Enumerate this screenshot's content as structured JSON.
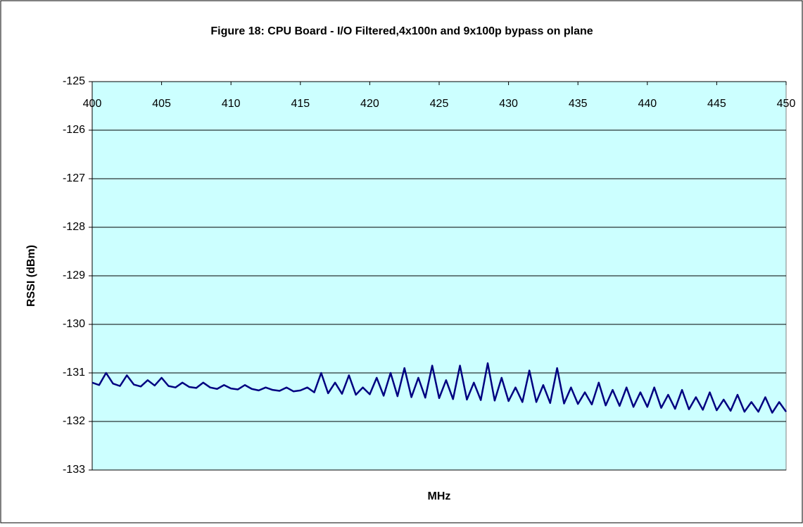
{
  "chart_data": {
    "type": "line",
    "title": "Figure 18: CPU Board - I/O Filtered,4x100n and 9x100p bypass on plane",
    "x_label": "MHz",
    "y_label": "RSSI (dBm)",
    "x": [
      400,
      400.5,
      401,
      401.5,
      402,
      402.5,
      403,
      403.5,
      404,
      404.5,
      405,
      405.5,
      406,
      406.5,
      407,
      407.5,
      408,
      408.5,
      409,
      409.5,
      410,
      410.5,
      411,
      411.5,
      412,
      412.5,
      413,
      413.5,
      414,
      414.5,
      415,
      415.5,
      416,
      416.5,
      417,
      417.5,
      418,
      418.5,
      419,
      419.5,
      420,
      420.5,
      421,
      421.5,
      422,
      422.5,
      423,
      423.5,
      424,
      424.5,
      425,
      425.5,
      426,
      426.5,
      427,
      427.5,
      428,
      428.5,
      429,
      429.5,
      430,
      430.5,
      431,
      431.5,
      432,
      432.5,
      433,
      433.5,
      434,
      434.5,
      435,
      435.5,
      436,
      436.5,
      437,
      437.5,
      438,
      438.5,
      439,
      439.5,
      440,
      440.5,
      441,
      441.5,
      442,
      442.5,
      443,
      443.5,
      444,
      444.5,
      445,
      445.5,
      446,
      446.5,
      447,
      447.5,
      448,
      448.5,
      449,
      449.5,
      450
    ],
    "series": [
      {
        "color": "#000080",
        "values": [
          -131.2,
          -131.25,
          -131.0,
          -131.22,
          -131.27,
          -131.05,
          -131.24,
          -131.28,
          -131.15,
          -131.26,
          -131.1,
          -131.27,
          -131.3,
          -131.2,
          -131.29,
          -131.31,
          -131.2,
          -131.3,
          -131.33,
          -131.25,
          -131.32,
          -131.34,
          -131.25,
          -131.33,
          -131.36,
          -131.3,
          -131.35,
          -131.37,
          -131.3,
          -131.38,
          -131.36,
          -131.3,
          -131.4,
          -131.0,
          -131.42,
          -131.2,
          -131.43,
          -131.05,
          -131.45,
          -131.3,
          -131.44,
          -131.1,
          -131.47,
          -131.0,
          -131.48,
          -130.9,
          -131.5,
          -131.1,
          -131.51,
          -130.85,
          -131.52,
          -131.15,
          -131.54,
          -130.85,
          -131.55,
          -131.2,
          -131.56,
          -130.8,
          -131.57,
          -131.1,
          -131.58,
          -131.3,
          -131.6,
          -130.95,
          -131.6,
          -131.25,
          -131.62,
          -130.9,
          -131.63,
          -131.3,
          -131.64,
          -131.4,
          -131.65,
          -131.2,
          -131.67,
          -131.35,
          -131.68,
          -131.3,
          -131.7,
          -131.4,
          -131.7,
          -131.3,
          -131.72,
          -131.45,
          -131.74,
          -131.35,
          -131.75,
          -131.5,
          -131.76,
          -131.4,
          -131.77,
          -131.55,
          -131.78,
          -131.45,
          -131.8,
          -131.6,
          -131.8,
          -131.5,
          -131.82,
          -131.6,
          -131.8
        ]
      }
    ],
    "xlim": [
      400,
      450
    ],
    "xticks": [
      400,
      405,
      410,
      415,
      420,
      425,
      430,
      435,
      440,
      445,
      450
    ],
    "ylim": [
      -133,
      -125
    ],
    "yticks": [
      -125,
      -126,
      -127,
      -128,
      -129,
      -130,
      -131,
      -132,
      -133
    ],
    "grid": true,
    "plot_background": "#ccffff"
  }
}
